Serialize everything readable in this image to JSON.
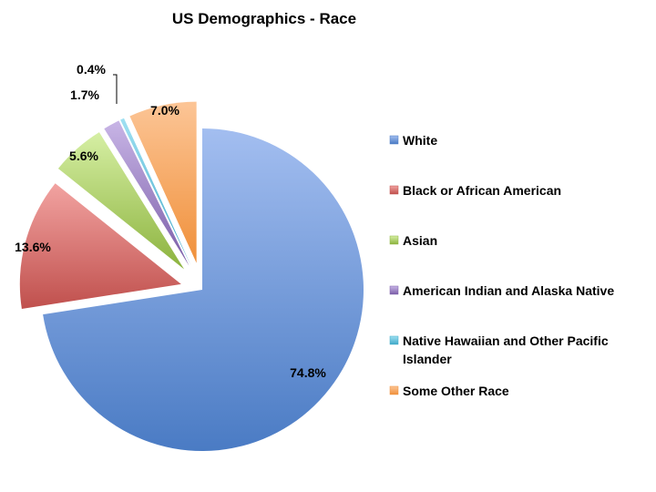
{
  "chart_data": {
    "type": "pie",
    "title": "US Demographics - Race",
    "exploded": true,
    "legend_position": "right",
    "slices": [
      {
        "label": "White",
        "value": 74.8,
        "value_label": "74.8%",
        "color": "#4a7bc4",
        "light": "#a3bef0"
      },
      {
        "label": "Black or African American",
        "value": 13.6,
        "value_label": "13.6%",
        "color": "#c0504d",
        "light": "#f2a3a1"
      },
      {
        "label": "Asian",
        "value": 5.6,
        "value_label": "5.6%",
        "color": "#8cb33e",
        "light": "#d6efa4"
      },
      {
        "label": "American Indian and Alaska Native",
        "value": 1.7,
        "value_label": "1.7%",
        "color": "#7b5ea8",
        "light": "#c8b5e6"
      },
      {
        "label": "Native Hawaiian and Other Pacific Islander",
        "value": 0.4,
        "value_label": "0.4%",
        "color": "#3fa9c8",
        "light": "#9fe0f2"
      },
      {
        "label": "Some Other Race",
        "value": 7.0,
        "value_label": "7.0%",
        "color": "#f0903a",
        "light": "#fcc596"
      }
    ]
  }
}
